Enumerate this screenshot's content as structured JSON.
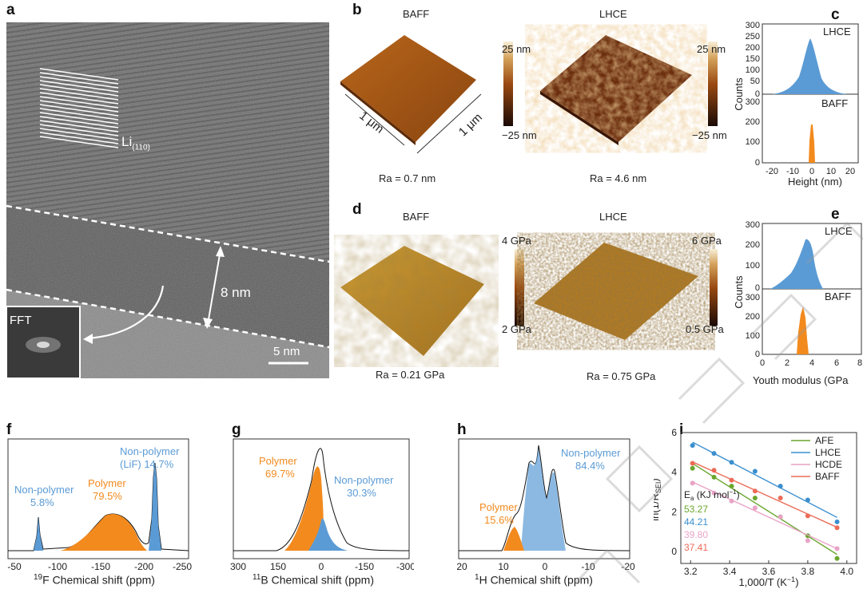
{
  "panels": {
    "a": {
      "letter": "a",
      "lattice_label": "Li",
      "lattice_sub": "(110)",
      "thickness": "8 nm",
      "fft": "FFT",
      "scale": "5 nm"
    },
    "b": {
      "letter": "b",
      "left_title": "BAFF",
      "right_title": "LHCE",
      "size_label_a": "1 μm",
      "size_label_b": "1 μm",
      "cbar_top_left": "25 nm",
      "cbar_bot_left": "−25 nm",
      "cbar_top_right": "25 nm",
      "cbar_bot_right": "−25 nm",
      "ra_left": "Ra = 0.7 nm",
      "ra_right": "Ra = 4.6 nm"
    },
    "c": {
      "letter": "c",
      "top_label": "LHCE",
      "bot_label": "BAFF",
      "ylabel": "Counts",
      "xlabel": "Height (nm)",
      "yticks_top": [
        "300",
        "250",
        "200",
        "150",
        "100",
        "50",
        "0"
      ],
      "yticks_bot": [
        "300",
        "200",
        "100",
        "0"
      ],
      "xticks": [
        "-20",
        "-10",
        "0",
        "10",
        "20"
      ]
    },
    "d": {
      "letter": "d",
      "left_title": "BAFF",
      "right_title": "LHCE",
      "cbar_top_left": "4 GPa",
      "cbar_bot_left": "2 GPa",
      "cbar_top_right": "6 GPa",
      "cbar_bot_right": "0.5 GPa",
      "ra_left": "Ra = 0.21 GPa",
      "ra_right": "Ra = 0.75 GPa"
    },
    "e": {
      "letter": "e",
      "top_label": "LHCE",
      "bot_label": "BAFF",
      "ylabel": "Counts",
      "xlabel": "Youth modulus (GPa",
      "yticks_top": [
        "300",
        "200",
        "100",
        "0"
      ],
      "yticks_bot": [
        "300",
        "200",
        "100",
        "0"
      ],
      "xticks": [
        "0",
        "2",
        "4",
        "6",
        "8"
      ]
    },
    "f": {
      "letter": "f",
      "nonpoly1": "Non-polymer",
      "nonpoly1_val": "5.8%",
      "poly": "Polymer",
      "poly_val": "79.5%",
      "nonpoly2": "Non-polymer",
      "nonpoly2_sub": "(LiF) 14.7%",
      "xticks": [
        "-50",
        "-100",
        "-150",
        "-200",
        "-250"
      ],
      "xlabel_sup": "19",
      "xlabel": "F Chemical shift (ppm)"
    },
    "g": {
      "letter": "g",
      "poly": "Polymer",
      "poly_val": "69.7%",
      "nonpoly": "Non-polymer",
      "nonpoly_val": "30.3%",
      "xticks": [
        "300",
        "150",
        "0",
        "-150",
        "-300"
      ],
      "xlabel_sup": "11",
      "xlabel": "B Chemical shift (ppm)"
    },
    "h": {
      "letter": "h",
      "poly": "Polymer",
      "poly_val": "15.6%",
      "nonpoly": "Non-polymer",
      "nonpoly_val": "84.4%",
      "xticks": [
        "20",
        "10",
        "0",
        "-10",
        "-20"
      ],
      "xlabel_sup": "1",
      "xlabel": "H Chemical shift (ppm)"
    },
    "i": {
      "letter": "i",
      "ylabel": "ln(1/R",
      "ylabel_sub": "SEI",
      "ylabel_end": ")",
      "xlabel": "1,000/T (K",
      "xlabel_sup": "−1",
      "xlabel_end": ")",
      "ea_label": "E",
      "ea_sub": "a",
      "ea_unit": " (KJ mol",
      "ea_sup": "−1",
      "ea_end": ")",
      "ea_values": [
        "53.27",
        "44.21",
        "39.80",
        "37.41"
      ]
    }
  },
  "colors": {
    "orange": "#f28a1e",
    "blue": "#5b9bd5",
    "afe": "#6aa62e",
    "lhce": "#3a8fcf",
    "hcde": "#e9a3c6",
    "baff": "#ec6b57"
  },
  "chart_data": [
    {
      "type": "line",
      "title": "",
      "xlabel": "1,000/T (K−1)",
      "ylabel": "ln(1/RSEI)",
      "xlim": [
        3.15,
        4.05
      ],
      "ylim": [
        -0.6,
        6
      ],
      "series": [
        {
          "name": "AFE",
          "color": "#6aa62e",
          "x": [
            3.21,
            3.32,
            3.41,
            3.53,
            3.66,
            3.8,
            3.95
          ],
          "values": [
            4.2,
            3.75,
            3.3,
            2.7,
            1.75,
            0.8,
            -0.35
          ]
        },
        {
          "name": "LHCE",
          "color": "#3a8fcf",
          "x": [
            3.21,
            3.32,
            3.41,
            3.53,
            3.66,
            3.8,
            3.95
          ],
          "values": [
            5.35,
            4.95,
            4.5,
            4.05,
            3.3,
            2.6,
            1.5
          ]
        },
        {
          "name": "HCDE",
          "color": "#e9a3c6",
          "x": [
            3.21,
            3.32,
            3.41,
            3.53,
            3.66,
            3.8,
            3.95
          ],
          "values": [
            3.45,
            2.95,
            2.55,
            2.2,
            1.75,
            0.55,
            0.15
          ]
        },
        {
          "name": "BAFF",
          "color": "#ec6b57",
          "x": [
            3.21,
            3.32,
            3.41,
            3.53,
            3.66,
            3.8,
            3.95
          ],
          "values": [
            4.45,
            4.1,
            3.6,
            3.05,
            2.7,
            1.8,
            1.2
          ]
        }
      ],
      "xticks": [
        "3.2",
        "3.4",
        "3.6",
        "3.8",
        "4.0"
      ],
      "yticks": [
        "0",
        "2",
        "4",
        "6"
      ]
    },
    {
      "type": "bar",
      "title": "",
      "xlabel": "Height (nm)",
      "ylabel": "Counts",
      "series": [
        {
          "name": "LHCE",
          "color": "#5b9bd5"
        },
        {
          "name": "BAFF",
          "color": "#f28a1e"
        }
      ]
    },
    {
      "type": "bar",
      "title": "",
      "xlabel": "Youth modulus (GPa",
      "ylabel": "Counts",
      "series": [
        {
          "name": "LHCE",
          "color": "#5b9bd5"
        },
        {
          "name": "BAFF",
          "color": "#f28a1e"
        }
      ]
    }
  ]
}
